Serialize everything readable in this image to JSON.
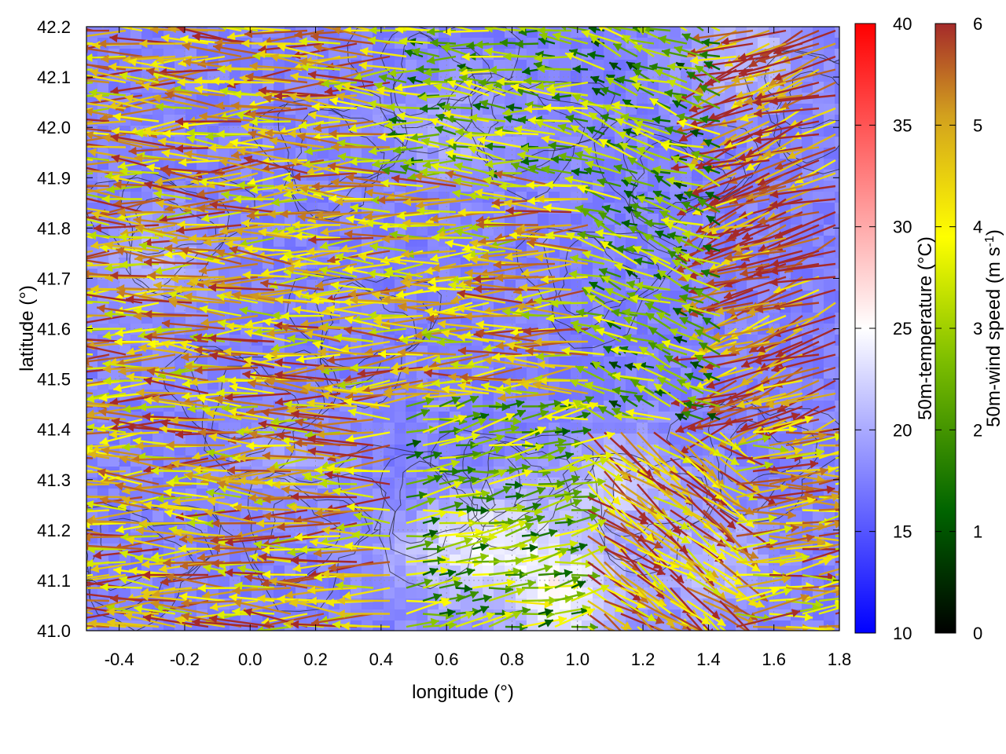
{
  "chart_data": {
    "type": "quiver_heatmap",
    "xlabel": "longitude (°)",
    "ylabel": "latitude (°)",
    "xlim": [
      -0.5,
      1.8
    ],
    "ylim": [
      41.0,
      42.2
    ],
    "xticks": [
      "-0.4",
      "-0.2",
      "0.0",
      "0.2",
      "0.4",
      "0.6",
      "0.8",
      "1.0",
      "1.2",
      "1.4",
      "1.6",
      "1.8"
    ],
    "xtick_values": [
      -0.4,
      -0.2,
      0.0,
      0.2,
      0.4,
      0.6,
      0.8,
      1.0,
      1.2,
      1.4,
      1.6,
      1.8
    ],
    "yticks": [
      "41.0",
      "41.1",
      "41.2",
      "41.3",
      "41.4",
      "41.5",
      "41.6",
      "41.7",
      "41.8",
      "41.9",
      "42.0",
      "42.1",
      "42.2"
    ],
    "ytick_values": [
      41.0,
      41.1,
      41.2,
      41.3,
      41.4,
      41.5,
      41.6,
      41.7,
      41.8,
      41.9,
      42.0,
      42.1,
      42.2
    ],
    "grid": true,
    "temperature_colorbar": {
      "label": "50m-temperature (°C)",
      "range": [
        10,
        40
      ],
      "ticks": [
        "10",
        "15",
        "20",
        "25",
        "30",
        "35",
        "40"
      ],
      "tick_values": [
        10,
        15,
        20,
        25,
        30,
        35,
        40
      ],
      "colors": [
        "#0000ff",
        "#ffffff",
        "#ff0000"
      ]
    },
    "wind_colorbar": {
      "label_main": "50m-wind speed (m s",
      "label_sup": "-1",
      "label_end": ")",
      "range": [
        0,
        6
      ],
      "ticks": [
        "0",
        "1",
        "2",
        "3",
        "4",
        "5",
        "6"
      ],
      "tick_values": [
        0,
        1,
        2,
        3,
        4,
        5,
        6
      ],
      "colors": [
        "#000000",
        "#006400",
        "#7fbf00",
        "#ffff00",
        "#d2a01e",
        "#a52a2a"
      ]
    },
    "field_description": "temperature mostly 15-21 °C with warmer patches ~22-26 °C in the southeast lowlands; winds predominantly easterly (arrows pointing west) in western half, 1-6 m/s",
    "temperature_regions": [
      {
        "lon": 0.75,
        "lat": 41.2,
        "temp": 23
      },
      {
        "lon": 0.95,
        "lat": 41.08,
        "temp": 25
      },
      {
        "lon": 1.1,
        "lat": 41.3,
        "temp": 22
      },
      {
        "lon": 0.55,
        "lat": 41.15,
        "temp": 21
      },
      {
        "lon": 1.4,
        "lat": 41.15,
        "temp": 21
      },
      {
        "lon": -0.3,
        "lat": 41.75,
        "temp": 20
      },
      {
        "lon": 0.6,
        "lat": 42.0,
        "temp": 20
      },
      {
        "lon": 1.5,
        "lat": 42.15,
        "temp": 21
      },
      {
        "lon": 0.1,
        "lat": 41.35,
        "temp": 19
      }
    ],
    "wind_regions": [
      {
        "lon_min": -0.5,
        "lon_max": 0.45,
        "lat_min": 41.0,
        "lat_max": 42.2,
        "dir_deg": 180,
        "speed": 4.6
      },
      {
        "lon_min": 0.45,
        "lon_max": 1.05,
        "lat_min": 41.45,
        "lat_max": 41.9,
        "dir_deg": 182,
        "speed": 4.4
      },
      {
        "lon_min": 0.4,
        "lon_max": 1.05,
        "lat_min": 41.9,
        "lat_max": 42.2,
        "dir_deg": 175,
        "speed": 2.6
      },
      {
        "lon_min": 1.05,
        "lon_max": 1.45,
        "lat_min": 41.4,
        "lat_max": 42.2,
        "dir_deg": 160,
        "speed": 2.4
      },
      {
        "lon_min": 1.45,
        "lon_max": 1.8,
        "lat_min": 41.4,
        "lat_max": 42.2,
        "dir_deg": 200,
        "speed": 5.6
      },
      {
        "lon_min": 0.45,
        "lon_max": 1.0,
        "lat_min": 41.0,
        "lat_max": 41.45,
        "dir_deg": 10,
        "speed": 2.6
      },
      {
        "lon_min": 1.0,
        "lon_max": 1.45,
        "lat_min": 41.0,
        "lat_max": 41.4,
        "dir_deg": -35,
        "speed": 5.0
      },
      {
        "lon_min": 1.45,
        "lon_max": 1.8,
        "lat_min": 41.0,
        "lat_max": 41.4,
        "dir_deg": 5,
        "speed": 4.6
      }
    ]
  }
}
